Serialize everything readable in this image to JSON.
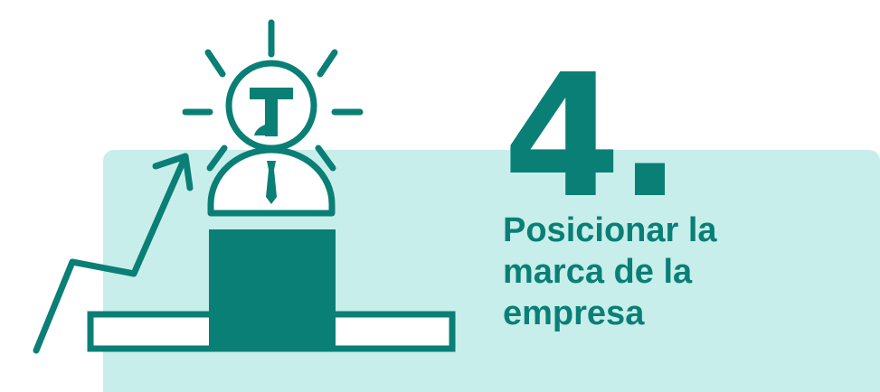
{
  "step": {
    "number": "4."
  },
  "title": {
    "text": "Posicionar la marca de la empresa"
  },
  "colors": {
    "primary": "#0a7f76",
    "panel": "#c7eeea",
    "background": "#ffffff"
  },
  "icons": {
    "illustration": "growth-podium-businessperson-idea-icon"
  }
}
